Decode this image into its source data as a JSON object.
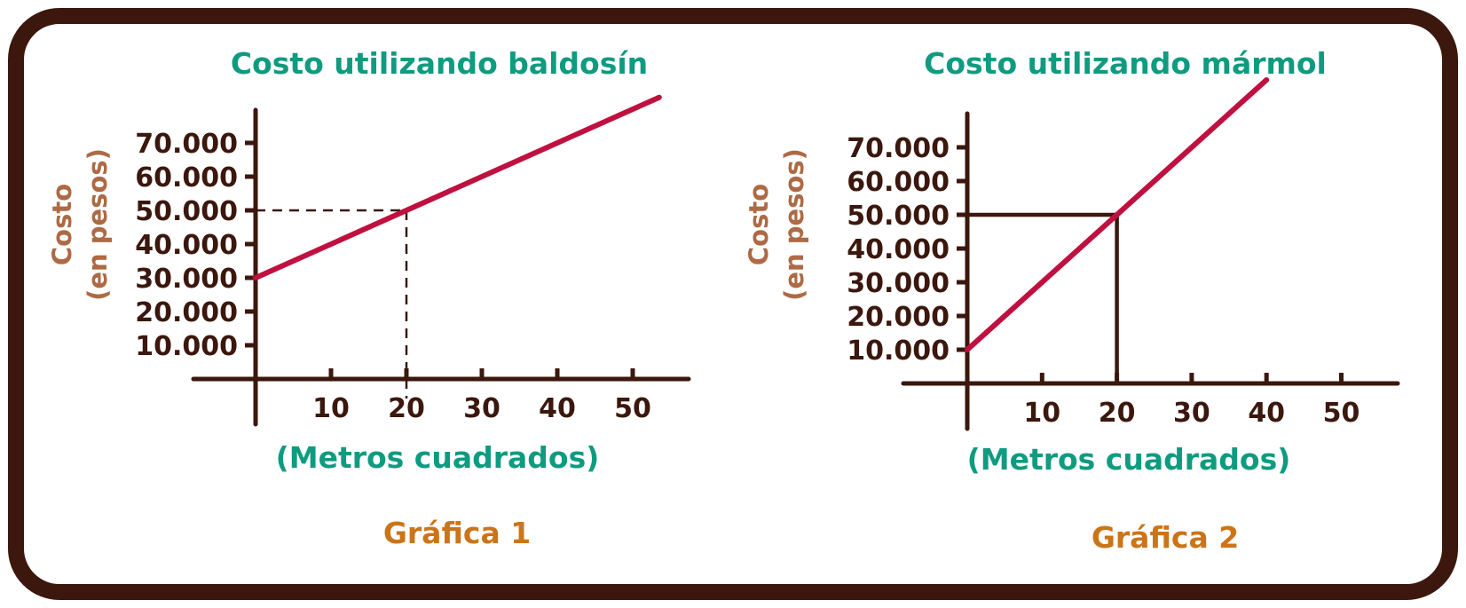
{
  "colors": {
    "frame": "#3b170d",
    "axis": "#3b170d",
    "line": "#c0103f",
    "title": "#0f9b80",
    "ylabel": "#ad6a44",
    "caption": "#cb7418"
  },
  "chart_data": [
    {
      "type": "line",
      "title": "Costo utilizando baldosín",
      "ylabel": [
        "Costo",
        "(en pesos)"
      ],
      "xlabel": "(Metros cuadrados)",
      "caption": "Gráfica 1",
      "x_ticks": [
        "10",
        "20",
        "30",
        "40",
        "50"
      ],
      "x_tick_values": [
        10,
        20,
        30,
        40,
        50
      ],
      "y_ticks": [
        "10.000",
        "20.000",
        "30.000",
        "40.000",
        "50.000",
        "60.000",
        "70.000"
      ],
      "y_tick_values": [
        10000,
        20000,
        30000,
        40000,
        50000,
        60000,
        70000
      ],
      "series": [
        {
          "x": [
            0,
            20,
            53.5
          ],
          "y": [
            30000,
            50000,
            83500
          ]
        }
      ],
      "reference": {
        "x": 20,
        "y": 50000,
        "style": "dashed"
      },
      "grid": false
    },
    {
      "type": "line",
      "title": "Costo utilizando mármol",
      "ylabel": [
        "Costo",
        "(en pesos)"
      ],
      "xlabel": "(Metros cuadrados)",
      "caption": "Gráfica 2",
      "x_ticks": [
        "10",
        "20",
        "30",
        "40",
        "50"
      ],
      "x_tick_values": [
        10,
        20,
        30,
        40,
        50
      ],
      "y_ticks": [
        "10.000",
        "20.000",
        "30.000",
        "40.000",
        "50.000",
        "60.000",
        "70.000"
      ],
      "y_tick_values": [
        10000,
        20000,
        30000,
        40000,
        50000,
        60000,
        70000
      ],
      "series": [
        {
          "x": [
            0,
            20,
            40
          ],
          "y": [
            10000,
            50000,
            90000
          ]
        }
      ],
      "reference": {
        "x": 20,
        "y": 50000,
        "style": "solid"
      },
      "grid": false
    }
  ]
}
